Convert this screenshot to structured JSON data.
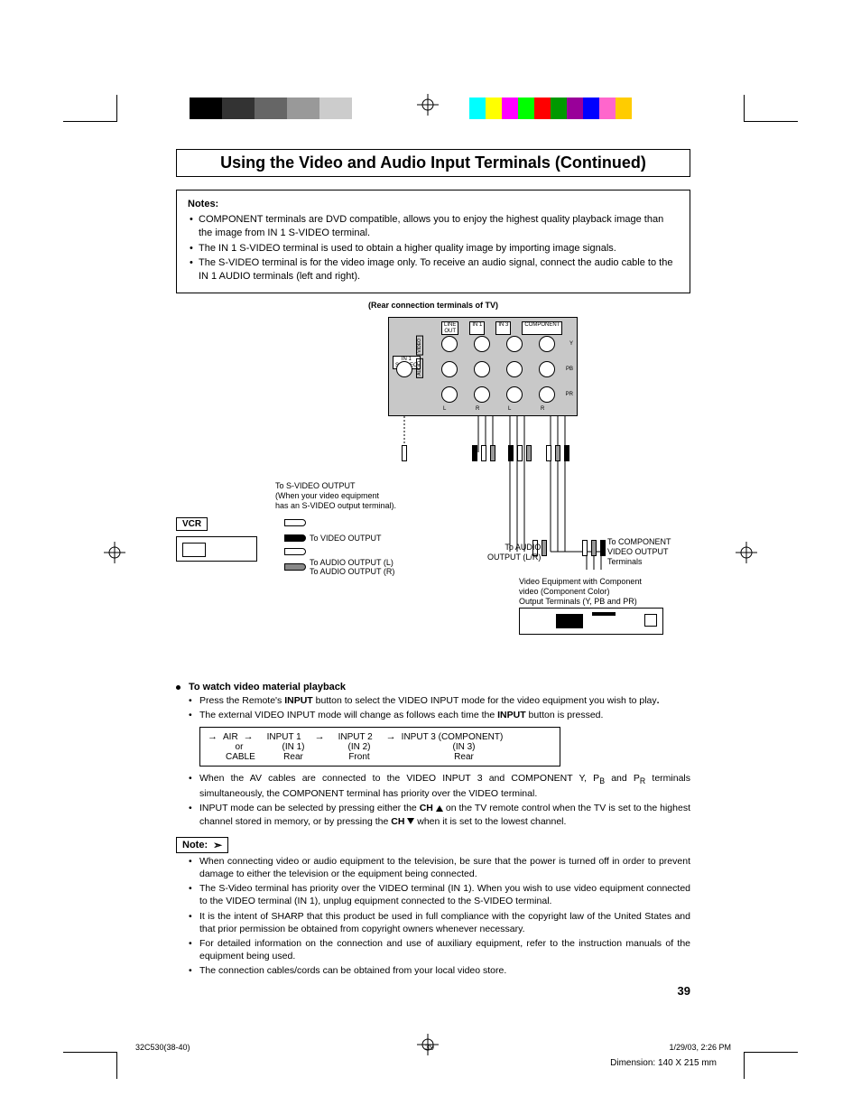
{
  "colorbars": {
    "left": [
      "#000000",
      "#000000",
      "#333333",
      "#333333",
      "#666666",
      "#666666",
      "#999999",
      "#999999",
      "#cccccc",
      "#cccccc",
      "#ffffff",
      "#ffffff"
    ],
    "right": [
      "#00ffff",
      "#ffff00",
      "#ff00ff",
      "#00ff00",
      "#ff0000",
      "#009900",
      "#990099",
      "#0000ff",
      "#ff66cc",
      "#ffcc00"
    ]
  },
  "page": {
    "title": "Using the Video and Audio Input Terminals (Continued)",
    "page_number": "39"
  },
  "notes_box": {
    "heading": "Notes:",
    "items": [
      "COMPONENT terminals are DVD compatible, allows you to enjoy the highest quality playback image than the image from IN 1 S-VIDEO terminal.",
      "The IN 1 S-VIDEO terminal is used to obtain a higher quality image by importing image signals.",
      "The S-VIDEO terminal is for the video image only. To receive an audio signal, connect the audio cable to the IN 1 AUDIO terminals (left and right)."
    ]
  },
  "diagram": {
    "caption": "(Rear connection terminals of TV)",
    "panel_labels": {
      "line_out": "LINE\nOUT",
      "in1": "IN 1",
      "in3": "IN 3",
      "component": "COMPONENT",
      "in1_svideo": "IN 1\nS-VIDEO",
      "video": "VIDEO",
      "audio": "AUDIO",
      "l": "L",
      "r": "R",
      "y": "Y",
      "pb": "PB",
      "pr": "PR"
    },
    "vcr_label": "VCR",
    "svideo_note": "To S-VIDEO OUTPUT\n(When your video equipment\nhas an S-VIDEO output terminal).",
    "video_out": "To VIDEO OUTPUT",
    "audio_out_l": "To AUDIO OUTPUT (L)",
    "audio_out_r": "To AUDIO OUTPUT (R)",
    "audio_lr": "To AUDIO\nOUTPUT (L/R)",
    "comp_out": "To COMPONENT\nVIDEO OUTPUT\nTerminals",
    "comp_device": "Video Equipment with Component\nvideo (Component Color)\nOutput Terminals (Y, PB and PR)"
  },
  "watch": {
    "heading": "To watch video material playback",
    "items_a": [
      "Press the Remote's INPUT button to select the VIDEO INPUT mode for the video equipment you wish to play.",
      "The external VIDEO INPUT mode will change as follows each time the INPUT button is pressed."
    ],
    "cycle": {
      "air": "AIR",
      "or": "or",
      "cable": "CABLE",
      "in1": "INPUT 1",
      "in1_sub": "(IN 1)",
      "in1_loc": "Rear",
      "in2": "INPUT 2",
      "in2_sub": "(IN 2)",
      "in2_loc": "Front",
      "in3": "INPUT 3 (COMPONENT)",
      "in3_sub": "(IN 3)",
      "in3_loc": "Rear"
    },
    "items_b": [
      "When the AV cables are connected to the VIDEO INPUT 3 and COMPONENT Y, PB and PR terminals simultaneously, the COMPONENT terminal has priority over the VIDEO terminal.",
      "INPUT mode can be selected by pressing either the CH ▲ on the TV remote control when the TV is set to the highest channel stored in memory, or by pressing the CH ▼ when it is set to the lowest channel."
    ]
  },
  "note2": {
    "label": "Note:",
    "items": [
      "When connecting video or audio equipment to the television, be sure that the power is turned off in order to prevent damage to either the television or the equipment being connected.",
      "The S-Video terminal has priority over the VIDEO terminal (IN 1). When you wish to use video equipment connected to the VIDEO terminal (IN 1), unplug equipment connected to the S-VIDEO terminal.",
      "It is the intent of SHARP that this product be used in full compliance with the copyright law of the United States and that prior permission be obtained from copyright owners whenever necessary.",
      "For detailed information on the connection and use of auxiliary equipment, refer to the instruction manuals of the equipment being used.",
      "The connection cables/cords can be obtained from your local video store."
    ]
  },
  "footer": {
    "file": "32C530(38-40)",
    "page": "39",
    "date": "1/29/03, 2:26 PM",
    "dimension": "Dimension: 140  X 215 mm"
  }
}
